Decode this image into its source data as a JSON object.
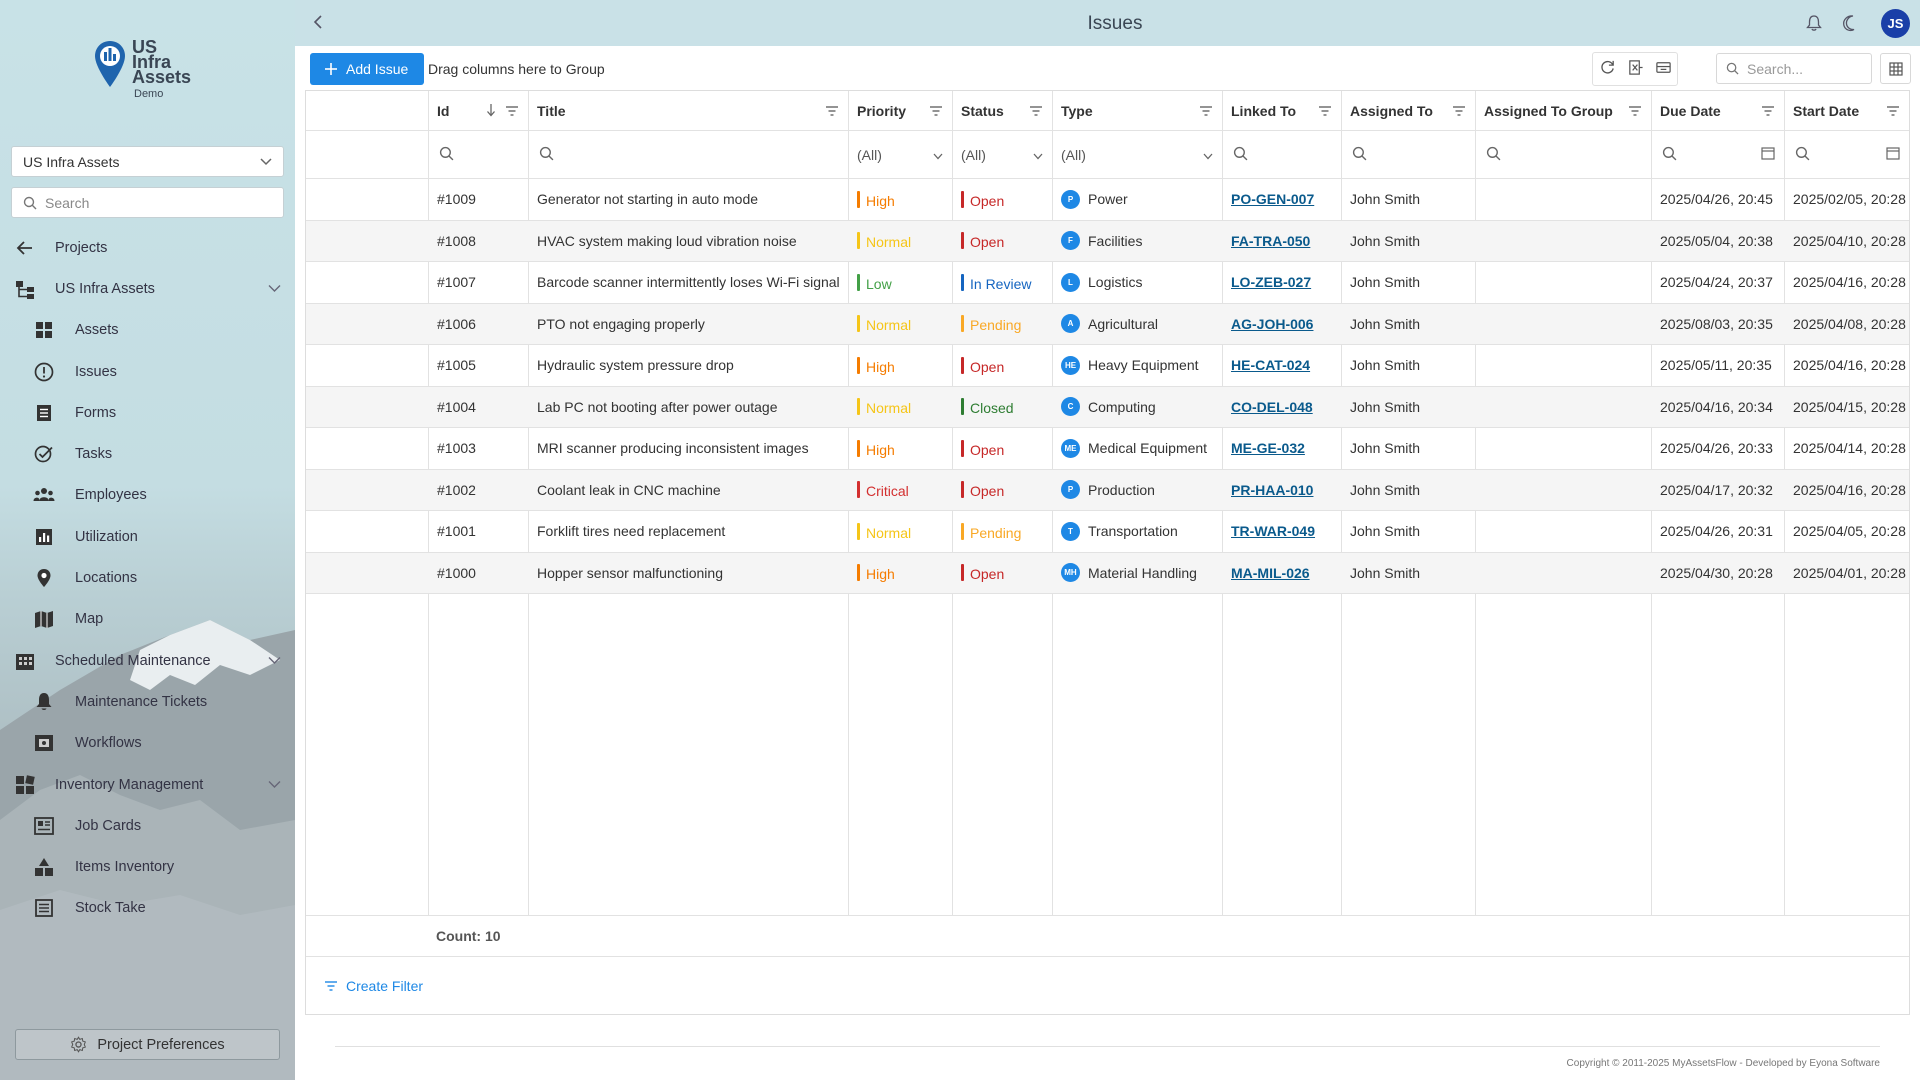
{
  "brand": {
    "line1": "US",
    "line2": "Infra",
    "line3": "Assets",
    "sub": "Demo"
  },
  "sidebar": {
    "project_select": "US Infra Assets",
    "search_placeholder": "Search",
    "items": [
      {
        "label": "Projects",
        "icon": "arrow-left-icon",
        "level": 1
      },
      {
        "label": "US Infra Assets",
        "icon": "hierarchy-icon",
        "level": 1,
        "chevron": "down"
      },
      {
        "label": "Assets",
        "icon": "cubes-icon",
        "level": 2
      },
      {
        "label": "Issues",
        "icon": "alert-circle-icon",
        "level": 2
      },
      {
        "label": "Forms",
        "icon": "form-icon",
        "level": 2
      },
      {
        "label": "Tasks",
        "icon": "task-check-icon",
        "level": 2
      },
      {
        "label": "Employees",
        "icon": "people-icon",
        "level": 2
      },
      {
        "label": "Utilization",
        "icon": "bar-chart-icon",
        "level": 2
      },
      {
        "label": "Locations",
        "icon": "map-pin-icon",
        "level": 2
      },
      {
        "label": "Map",
        "icon": "map-icon",
        "level": 2
      },
      {
        "label": "Scheduled Maintenance",
        "icon": "building-icon",
        "level": 1,
        "chevron": "down"
      },
      {
        "label": "Maintenance Tickets",
        "icon": "bell-icon",
        "level": 2
      },
      {
        "label": "Workflows",
        "icon": "workflow-icon",
        "level": 2
      },
      {
        "label": "Inventory Management",
        "icon": "dashboard-icon",
        "level": 1,
        "chevron": "down"
      },
      {
        "label": "Job Cards",
        "icon": "job-card-icon",
        "level": 2
      },
      {
        "label": "Items Inventory",
        "icon": "shapes-icon",
        "level": 2
      },
      {
        "label": "Stock Take",
        "icon": "list-icon",
        "level": 2
      }
    ],
    "preferences_label": "Project Preferences"
  },
  "header": {
    "title": "Issues",
    "avatar_initials": "JS"
  },
  "toolbar": {
    "add_label": "Add Issue",
    "group_hint": "Drag columns here to Group",
    "search_placeholder": "Search..."
  },
  "grid": {
    "columns": [
      "Id",
      "Title",
      "Priority",
      "Status",
      "Type",
      "Linked To",
      "Assigned To",
      "Assigned To Group",
      "Due Date",
      "Start Date"
    ],
    "filter_all": "(All)",
    "rows": [
      {
        "id": "#1009",
        "title": "Generator not starting in auto mode",
        "priority": "High",
        "status": "Open",
        "type_badge": "P",
        "type": "Power",
        "linked": "PO-GEN-007",
        "assigned": "John Smith",
        "group": "",
        "due": "2025/04/26, 20:45",
        "start": "2025/02/05, 20:28"
      },
      {
        "id": "#1008",
        "title": "HVAC system making loud vibration noise",
        "priority": "Normal",
        "status": "Open",
        "type_badge": "F",
        "type": "Facilities",
        "linked": "FA-TRA-050",
        "assigned": "John Smith",
        "group": "",
        "due": "2025/05/04, 20:38",
        "start": "2025/04/10, 20:28"
      },
      {
        "id": "#1007",
        "title": "Barcode scanner intermittently loses Wi-Fi signal",
        "priority": "Low",
        "status": "In Review",
        "type_badge": "L",
        "type": "Logistics",
        "linked": "LO-ZEB-027",
        "assigned": "John Smith",
        "group": "",
        "due": "2025/04/24, 20:37",
        "start": "2025/04/16, 20:28"
      },
      {
        "id": "#1006",
        "title": "PTO not engaging properly",
        "priority": "Normal",
        "status": "Pending",
        "type_badge": "A",
        "type": "Agricultural",
        "linked": "AG-JOH-006",
        "assigned": "John Smith",
        "group": "",
        "due": "2025/08/03, 20:35",
        "start": "2025/04/08, 20:28"
      },
      {
        "id": "#1005",
        "title": "Hydraulic system pressure drop",
        "priority": "High",
        "status": "Open",
        "type_badge": "HE",
        "type": "Heavy Equipment",
        "linked": "HE-CAT-024",
        "assigned": "John Smith",
        "group": "",
        "due": "2025/05/11, 20:35",
        "start": "2025/04/16, 20:28"
      },
      {
        "id": "#1004",
        "title": "Lab PC not booting after power outage",
        "priority": "Normal",
        "status": "Closed",
        "type_badge": "C",
        "type": "Computing",
        "linked": "CO-DEL-048",
        "assigned": "John Smith",
        "group": "",
        "due": "2025/04/16, 20:34",
        "start": "2025/04/15, 20:28"
      },
      {
        "id": "#1003",
        "title": "MRI scanner producing inconsistent images",
        "priority": "High",
        "status": "Open",
        "type_badge": "ME",
        "type": "Medical Equipment",
        "linked": "ME-GE-032",
        "assigned": "John Smith",
        "group": "",
        "due": "2025/04/26, 20:33",
        "start": "2025/04/14, 20:28"
      },
      {
        "id": "#1002",
        "title": "Coolant leak in CNC machine",
        "priority": "Critical",
        "status": "Open",
        "type_badge": "P",
        "type": "Production",
        "linked": "PR-HAA-010",
        "assigned": "John Smith",
        "group": "",
        "due": "2025/04/17, 20:32",
        "start": "2025/04/16, 20:28"
      },
      {
        "id": "#1001",
        "title": "Forklift tires need replacement",
        "priority": "Normal",
        "status": "Pending",
        "type_badge": "T",
        "type": "Transportation",
        "linked": "TR-WAR-049",
        "assigned": "John Smith",
        "group": "",
        "due": "2025/04/26, 20:31",
        "start": "2025/04/05, 20:28"
      },
      {
        "id": "#1000",
        "title": "Hopper sensor malfunctioning",
        "priority": "High",
        "status": "Open",
        "type_badge": "MH",
        "type": "Material Handling",
        "linked": "MA-MIL-026",
        "assigned": "John Smith",
        "group": "",
        "due": "2025/04/30, 20:28",
        "start": "2025/04/01, 20:28"
      }
    ],
    "count_label": "Count: 10",
    "create_filter_label": "Create Filter"
  },
  "colors": {
    "priority": {
      "High": "#f57c00",
      "Normal": "#f5c518",
      "Low": "#43a047",
      "Critical": "#d32f2f"
    },
    "status": {
      "Open": "#c62828",
      "In Review": "#1565c0",
      "Pending": "#f9a825",
      "Closed": "#2e7d32"
    },
    "accent": "#1e88e5"
  },
  "footer": {
    "copyright": "Copyright © 2011-2025 MyAssetsFlow - Developed by Eyona Software"
  }
}
